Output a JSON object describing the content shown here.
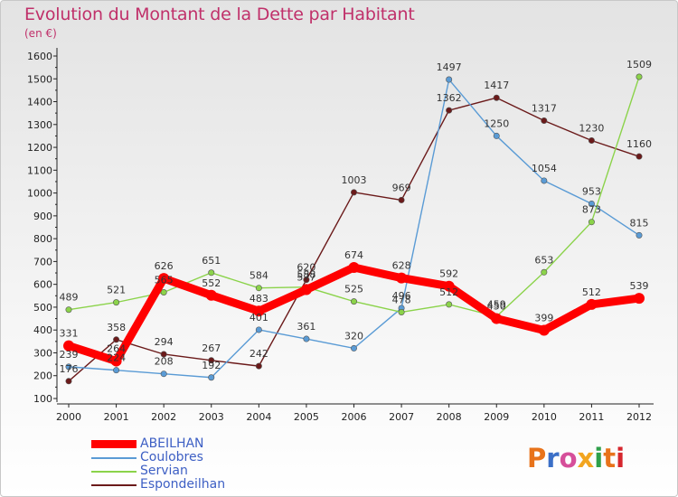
{
  "header": {
    "title": "Evolution du Montant de la Dette par Habitant",
    "subtitle": "(en €)"
  },
  "logo": {
    "text": "Proxiti",
    "colors": [
      "#e8731b",
      "#3b6fc7",
      "#d64f9a",
      "#f2a51f",
      "#2fa04a",
      "#e8731b",
      "#d6262d"
    ]
  },
  "chart_data": {
    "type": "line",
    "x": [
      2000,
      2001,
      2002,
      2003,
      2004,
      2005,
      2006,
      2007,
      2008,
      2009,
      2010,
      2011,
      2012
    ],
    "ylim": [
      100,
      1600
    ],
    "yticks": [
      100,
      200,
      300,
      400,
      500,
      600,
      700,
      800,
      900,
      1000,
      1100,
      1200,
      1300,
      1400,
      1500,
      1600
    ],
    "grid": false,
    "legend_position": "bottom-left",
    "series": [
      {
        "name": "ABEILHAN",
        "color": "#ff0000",
        "values": [
          331,
          264,
          626,
          552,
          483,
          577,
          674,
          628,
          592,
          450,
          399,
          512,
          539
        ]
      },
      {
        "name": "Coulobres",
        "color": "#5a9bd5",
        "values": [
          239,
          224,
          208,
          192,
          401,
          361,
          320,
          496,
          1497,
          1250,
          1054,
          953,
          815
        ]
      },
      {
        "name": "Servian",
        "color": "#8bd34a",
        "values": [
          489,
          521,
          565,
          651,
          584,
          588,
          525,
          478,
          512,
          459,
          653,
          873,
          1509
        ]
      },
      {
        "name": "Espondeilhan",
        "color": "#6b1a1a",
        "values": [
          176,
          358,
          294,
          267,
          242,
          620,
          1003,
          969,
          1362,
          1417,
          1317,
          1230,
          1160
        ]
      }
    ]
  }
}
